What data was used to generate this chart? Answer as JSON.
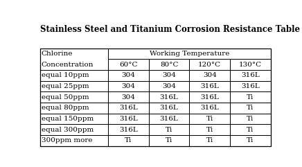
{
  "title": "Stainless Steel and Titanium Corrosion Resistance Table",
  "temps": [
    "60°C",
    "80°C",
    "120°C",
    "130°C"
  ],
  "rows": [
    [
      "equal 10ppm",
      "304",
      "304",
      "304",
      "316L"
    ],
    [
      "equal 25ppm",
      "304",
      "304",
      "316L",
      "316L"
    ],
    [
      "equal 50ppm",
      "304",
      "316L",
      "316L",
      "Ti"
    ],
    [
      "equal 80ppm",
      "316L",
      "316L",
      "316L",
      "Ti"
    ],
    [
      "equal 150ppm",
      "316L",
      "316L",
      "Ti",
      "Ti"
    ],
    [
      "equal 300ppm",
      "316L",
      "Ti",
      "Ti",
      "Ti"
    ],
    [
      "300ppm more",
      "Ti",
      "Ti",
      "Ti",
      "Ti"
    ]
  ],
  "bg_color": "#ffffff",
  "text_color": "#000000",
  "title_fontsize": 8.5,
  "cell_fontsize": 7.5,
  "header_fontsize": 7.5
}
